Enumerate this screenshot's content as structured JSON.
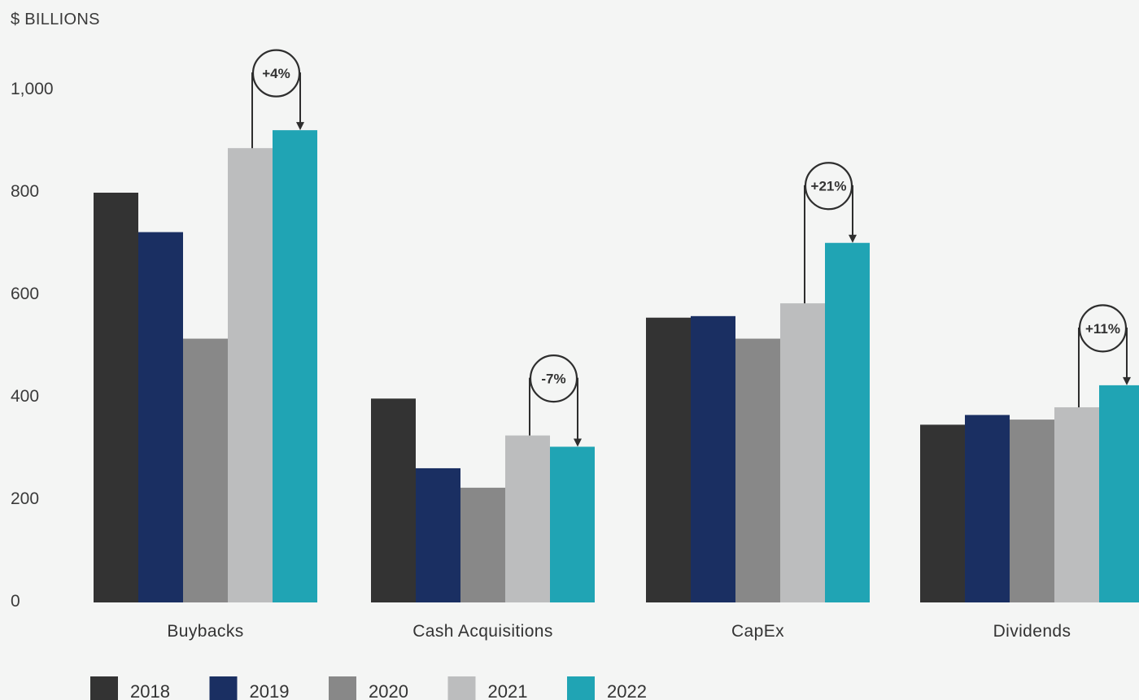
{
  "chart_data": {
    "type": "bar",
    "unit_label": "$ BILLIONS",
    "categories": [
      "Buybacks",
      "Cash Acquisitions",
      "CapEx",
      "Dividends"
    ],
    "series": [
      {
        "name": "2018",
        "color": "#333333",
        "values": [
          800,
          398,
          556,
          347
        ]
      },
      {
        "name": "2019",
        "color": "#1a2f62",
        "values": [
          723,
          262,
          559,
          366
        ]
      },
      {
        "name": "2020",
        "color": "#888888",
        "values": [
          515,
          224,
          515,
          357
        ]
      },
      {
        "name": "2021",
        "color": "#bcbdbe",
        "values": [
          887,
          326,
          584,
          381
        ]
      },
      {
        "name": "2022",
        "color": "#20a4b4",
        "values": [
          922,
          304,
          702,
          424
        ]
      }
    ],
    "annotations": [
      {
        "category": "Buybacks",
        "text": "+4%"
      },
      {
        "category": "Cash Acquisitions",
        "text": "-7%"
      },
      {
        "category": "CapEx",
        "text": "+21%"
      },
      {
        "category": "Dividends",
        "text": "+11%"
      }
    ],
    "yticks": [
      "0",
      "200",
      "400",
      "600",
      "800",
      "1,000"
    ],
    "ylim": [
      0,
      1000
    ],
    "grid": false,
    "legend_position": "bottom-left"
  }
}
